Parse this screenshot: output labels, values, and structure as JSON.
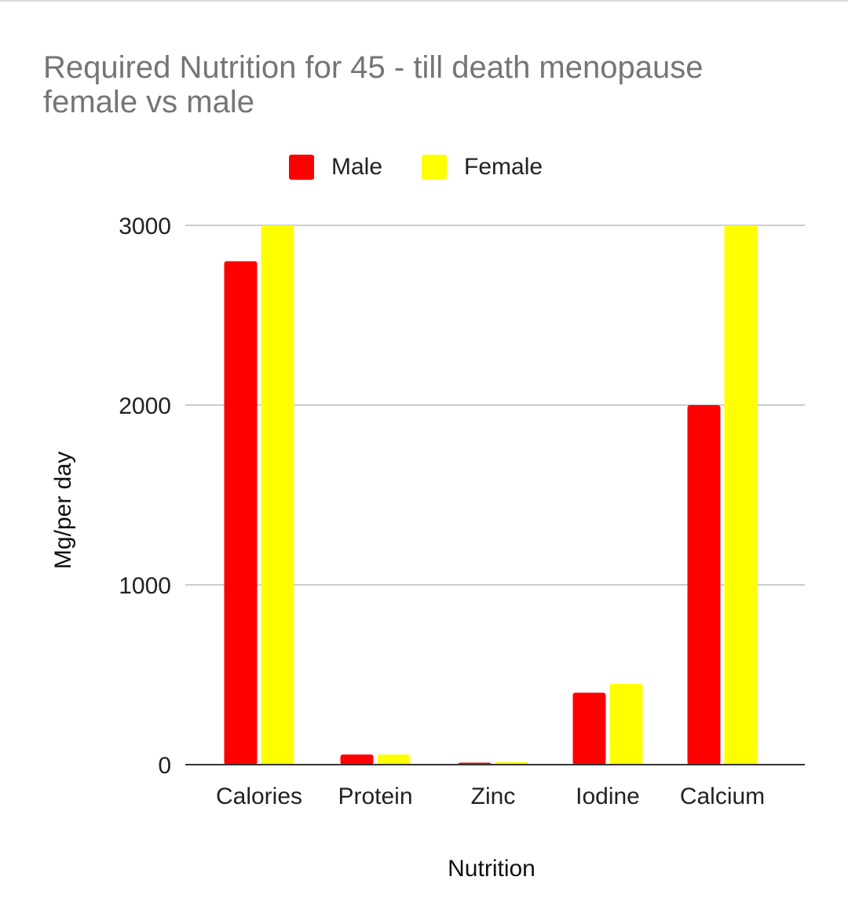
{
  "chart_data": {
    "type": "bar",
    "title": "Required Nutrition for 45 - till death menopause female vs male",
    "xlabel": "Nutrition",
    "ylabel": "Mg/per day",
    "categories": [
      "Calories",
      "Protein",
      "Zinc",
      "Iodine",
      "Calcium"
    ],
    "series": [
      {
        "name": "Male",
        "color": "#ff0000",
        "values": [
          2800,
          56,
          11,
          400,
          2000
        ]
      },
      {
        "name": "Female",
        "color": "#ffff00",
        "values": [
          3000,
          56,
          15,
          450,
          3000
        ]
      }
    ],
    "ylim": [
      0,
      3000
    ],
    "yticks": [
      0,
      1000,
      2000,
      3000
    ],
    "grid": true,
    "legend_position": "top"
  }
}
